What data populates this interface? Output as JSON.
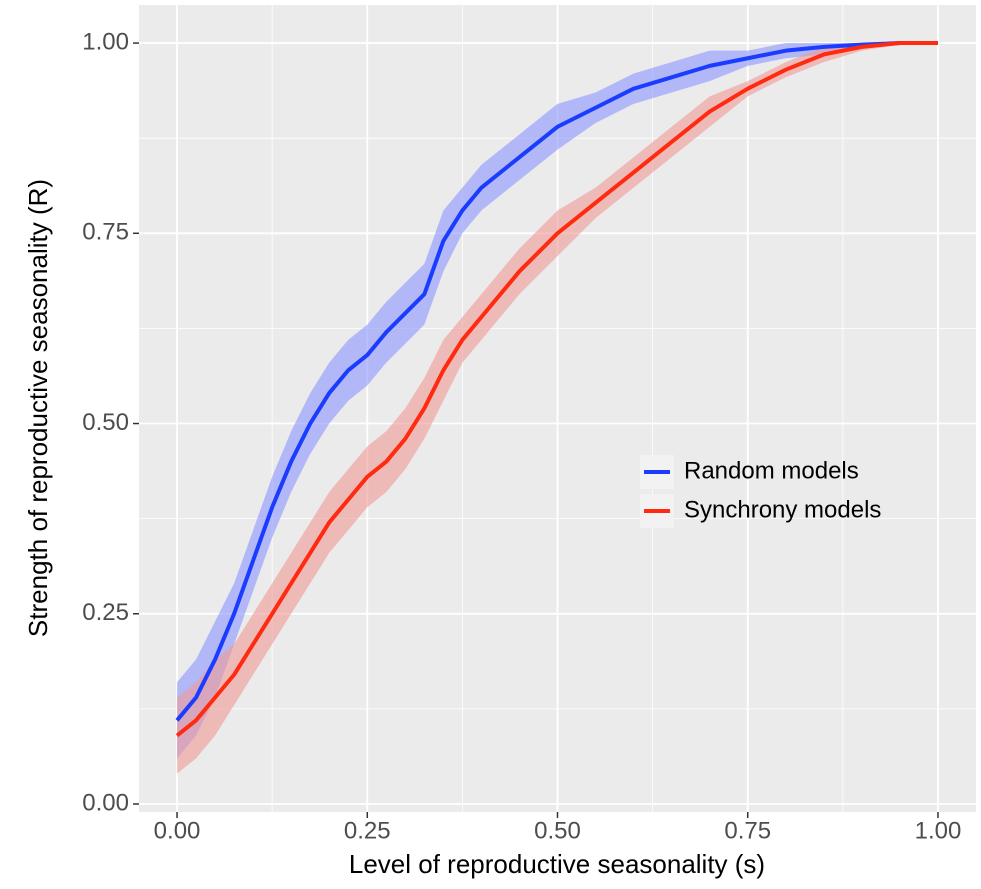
{
  "chart_data": {
    "type": "ribbon-line",
    "x_label": "Level of reproductive seasonality (s)",
    "y_label": "Strength of reproductive seasonality (R)",
    "x": [
      0,
      0.025,
      0.05,
      0.075,
      0.1,
      0.125,
      0.15,
      0.175,
      0.2,
      0.225,
      0.25,
      0.275,
      0.3,
      0.325,
      0.35,
      0.375,
      0.4,
      0.45,
      0.5,
      0.55,
      0.6,
      0.65,
      0.7,
      0.75,
      0.8,
      0.85,
      0.9,
      0.95,
      1.0
    ],
    "series": [
      {
        "name": "Random models",
        "color": "#1a3cff",
        "band_color": "#8c96ff",
        "values": [
          0.11,
          0.14,
          0.19,
          0.25,
          0.32,
          0.39,
          0.45,
          0.5,
          0.54,
          0.57,
          0.59,
          0.62,
          0.645,
          0.67,
          0.74,
          0.78,
          0.81,
          0.85,
          0.89,
          0.915,
          0.94,
          0.955,
          0.97,
          0.98,
          0.99,
          0.995,
          0.998,
          1,
          1
        ],
        "lower": [
          0.06,
          0.09,
          0.14,
          0.21,
          0.28,
          0.35,
          0.41,
          0.46,
          0.5,
          0.53,
          0.55,
          0.58,
          0.605,
          0.63,
          0.7,
          0.75,
          0.78,
          0.82,
          0.86,
          0.895,
          0.92,
          0.935,
          0.95,
          0.97,
          0.98,
          0.985,
          0.993,
          0.998,
          1
        ],
        "upper": [
          0.16,
          0.19,
          0.24,
          0.29,
          0.36,
          0.43,
          0.49,
          0.54,
          0.58,
          0.61,
          0.63,
          0.66,
          0.685,
          0.71,
          0.78,
          0.81,
          0.84,
          0.88,
          0.92,
          0.935,
          0.96,
          0.975,
          0.99,
          0.99,
          1,
          1,
          1,
          1,
          1
        ]
      },
      {
        "name": "Synchrony models",
        "color": "#ff2a0f",
        "band_color": "#f09a96",
        "values": [
          0.09,
          0.11,
          0.14,
          0.17,
          0.21,
          0.25,
          0.29,
          0.33,
          0.37,
          0.4,
          0.43,
          0.45,
          0.48,
          0.52,
          0.57,
          0.61,
          0.64,
          0.7,
          0.75,
          0.79,
          0.83,
          0.87,
          0.91,
          0.94,
          0.965,
          0.985,
          0.995,
          1,
          1
        ],
        "lower": [
          0.04,
          0.06,
          0.09,
          0.13,
          0.17,
          0.21,
          0.25,
          0.29,
          0.33,
          0.36,
          0.39,
          0.41,
          0.44,
          0.48,
          0.53,
          0.58,
          0.61,
          0.67,
          0.72,
          0.77,
          0.81,
          0.85,
          0.89,
          0.93,
          0.955,
          0.975,
          0.99,
          0.998,
          1
        ],
        "upper": [
          0.14,
          0.16,
          0.19,
          0.21,
          0.25,
          0.29,
          0.33,
          0.37,
          0.41,
          0.44,
          0.47,
          0.49,
          0.52,
          0.56,
          0.61,
          0.64,
          0.67,
          0.73,
          0.78,
          0.81,
          0.85,
          0.89,
          0.93,
          0.95,
          0.975,
          0.995,
          1,
          1,
          1
        ]
      }
    ],
    "xlim": [
      -0.05,
      1.05
    ],
    "ylim": [
      -0.0105,
      1.05
    ],
    "xticks": [
      {
        "value": 0,
        "label": "0.00"
      },
      0.25,
      {
        "value": 0.5,
        "label": "0.50"
      },
      0.75,
      {
        "value": 1,
        "label": "1.00"
      }
    ],
    "yticks": [
      {
        "value": 0,
        "label": "0.00"
      },
      0.25,
      {
        "value": 0.5,
        "label": "0.50"
      },
      0.75,
      {
        "value": 1,
        "label": "1.00"
      }
    ],
    "x_minor_ticks": [
      0.125,
      0.375,
      0.625,
      0.875
    ],
    "y_minor_ticks": [
      0.125,
      0.375,
      0.625,
      0.875
    ],
    "grid": true,
    "legend": "right"
  }
}
